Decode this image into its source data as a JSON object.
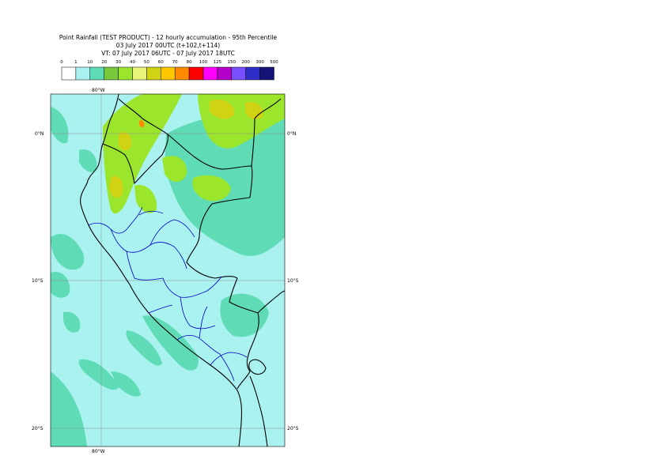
{
  "header": {
    "title": "Point Rainfall (TEST PRODUCT) - 12 hourly accumulation - 95th Percentile",
    "base_time": "03 July 2017 00UTC (t+102,t+114)",
    "valid_time": "VT: 07 July 2017 06UTC - 07 July 2017 18UTC"
  },
  "legend": {
    "thresholds": [
      "0",
      "1",
      "10",
      "20",
      "30",
      "40",
      "50",
      "60",
      "70",
      "80",
      "100",
      "125",
      "150",
      "200",
      "300",
      "500"
    ],
    "colors": [
      "#ffffff",
      "#aaf2f0",
      "#5fdcb6",
      "#78c83c",
      "#9be62d",
      "#e8f578",
      "#d2d214",
      "#ffc800",
      "#ff8c00",
      "#ff0000",
      "#ff00ff",
      "#b400c8",
      "#7850ff",
      "#2d2dc8",
      "#141478"
    ]
  },
  "map": {
    "lon_labels_top": [
      "80°W"
    ],
    "lon_labels_bottom": [
      "80°W"
    ],
    "lat_labels_left": [
      "0°N",
      "10°S",
      "20°S"
    ],
    "lat_labels_right": [
      "0°N",
      "10°S",
      "20°S"
    ],
    "colors": {
      "ocean_base": "#aaf2f0",
      "light": "#aaf2f0",
      "medium": "#5fdcb6",
      "heavy": "#9be62d",
      "very_heavy": "#d2d214",
      "extreme": "#ff8c00",
      "coast": "#000000",
      "borders": "#0000c8",
      "gridlines": "#8a8a8a"
    }
  }
}
